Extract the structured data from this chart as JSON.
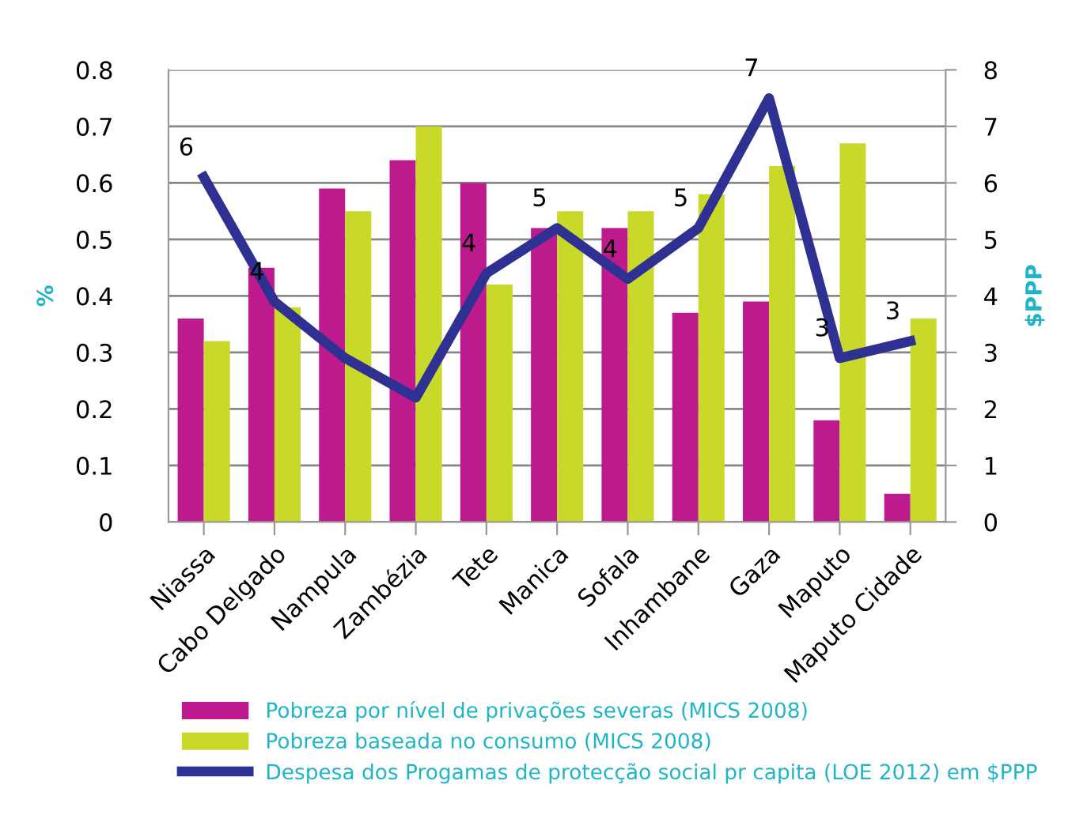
{
  "chart_data": {
    "type": "bar",
    "categories": [
      "Niassa",
      "Cabo Delgado",
      "Nampula",
      "Zambézia",
      "Tete",
      "Manica",
      "Sofala",
      "Inhambane",
      "Gaza",
      "Maputo",
      "Maputo Cidade"
    ],
    "ylabel": "%",
    "y2label": "$PPP",
    "ylim": [
      0,
      0.8
    ],
    "yticks": [
      {
        "value": 0,
        "label": "0"
      },
      0.1,
      0.2,
      0.3,
      0.4,
      0.5,
      0.6,
      0.7,
      0.8
    ],
    "y2lim": [
      0,
      8
    ],
    "y2ticks": [
      0,
      1,
      2,
      3,
      4,
      5,
      6,
      7,
      8
    ],
    "grid": "y",
    "legend": "bottom",
    "series": [
      {
        "name": "Pobreza por nível de privações severas (MICS 2008)",
        "color": "#bd1a8d",
        "values": [
          0.36,
          0.45,
          0.59,
          0.64,
          0.6,
          0.52,
          0.52,
          0.37,
          0.39,
          0.18,
          0.05
        ]
      },
      {
        "name": "Pobreza baseada no consumo (MICS 2008)",
        "color": "#c9d92a",
        "values": [
          0.32,
          0.38,
          0.55,
          0.7,
          0.42,
          0.55,
          0.55,
          0.58,
          0.63,
          0.67,
          0.36
        ]
      },
      {
        "name": "Despesa dos Progamas de protecção social pr capita (LOE 2012) em $PPP",
        "color": "#2e3192",
        "type": "line",
        "axis": "y2",
        "values": [
          6.1,
          3.9,
          2.9,
          2.2,
          4.4,
          5.2,
          4.3,
          5.2,
          7.5,
          2.9,
          3.2
        ],
        "value_labels": [
          "6",
          "4",
          null,
          null,
          "4",
          "5",
          "4",
          "5",
          "7",
          "3",
          "3"
        ]
      }
    ]
  }
}
